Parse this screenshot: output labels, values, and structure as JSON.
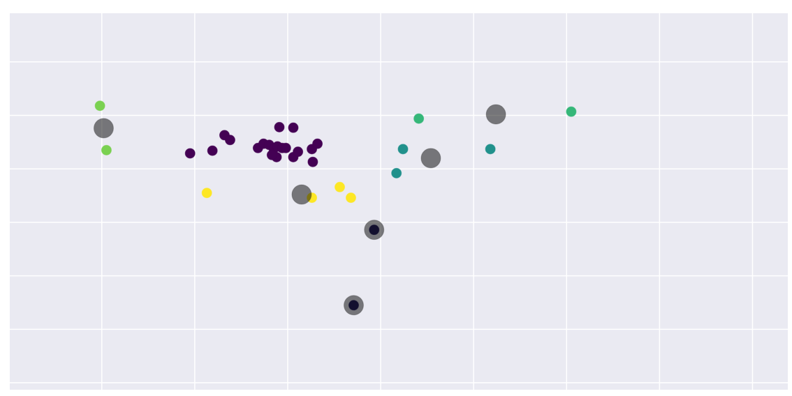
{
  "chart_data": {
    "type": "scatter",
    "grid": true,
    "xlim": [
      -0.99,
      7.38
    ],
    "ylim": [
      -0.13,
      6.91
    ],
    "xticks": [
      0,
      1,
      2,
      3,
      4,
      5,
      6,
      7
    ],
    "yticks": [
      0,
      1,
      2,
      3,
      4,
      5,
      6
    ],
    "series": [
      {
        "color": "#440154",
        "marker_size": 7,
        "opacity": 1,
        "x": [
          0.95,
          1.19,
          1.32,
          1.38,
          1.68,
          1.74,
          1.8,
          1.85,
          1.89,
          1.94,
          1.98,
          1.88,
          1.91,
          2.06,
          2.06,
          2.11,
          2.26,
          2.32,
          2.27,
          1.83
        ],
        "values": [
          4.29,
          4.34,
          4.63,
          4.54,
          4.39,
          4.47,
          4.45,
          4.38,
          4.42,
          4.39,
          4.39,
          4.22,
          4.78,
          4.77,
          4.22,
          4.32,
          4.37,
          4.47,
          4.13,
          4.26
        ]
      },
      {
        "color": "#26205e",
        "marker_size": 7,
        "opacity": 1,
        "x": [
          2.93,
          2.71
        ],
        "values": [
          2.86,
          1.45
        ]
      },
      {
        "color": "#21918c",
        "marker_size": 7,
        "opacity": 1,
        "x": [
          3.24,
          3.17,
          4.18
        ],
        "values": [
          4.37,
          3.92,
          4.37
        ]
      },
      {
        "color": "#35b779",
        "marker_size": 7,
        "opacity": 1,
        "x": [
          3.41,
          5.05
        ],
        "values": [
          4.94,
          5.07
        ]
      },
      {
        "color": "#7ad151",
        "marker_size": 7,
        "opacity": 1,
        "x": [
          -0.02,
          0.05
        ],
        "values": [
          5.18,
          4.35
        ]
      },
      {
        "color": "#fde725",
        "marker_size": 7,
        "opacity": 1,
        "x": [
          1.13,
          2.26,
          2.56,
          2.68
        ],
        "values": [
          3.55,
          3.46,
          3.66,
          3.46
        ]
      },
      {
        "color": "#000000",
        "marker_size": 14,
        "opacity": 0.5,
        "x": [
          0.02,
          2.15,
          3.54,
          4.24,
          2.93,
          2.71
        ],
        "values": [
          4.76,
          3.52,
          4.2,
          5.02,
          2.86,
          1.45
        ]
      }
    ]
  }
}
